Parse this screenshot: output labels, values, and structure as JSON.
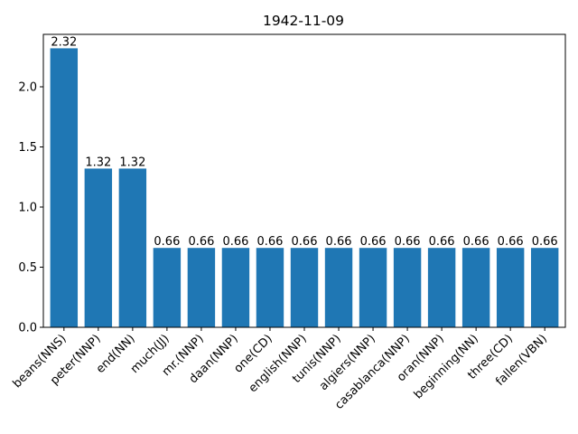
{
  "chart_data": {
    "type": "bar",
    "title": "1942-11-09",
    "xlabel": "",
    "ylabel": "",
    "ylim": [
      0,
      2.436
    ],
    "yticks": [
      0.0,
      0.5,
      1.0,
      1.5,
      2.0
    ],
    "ytick_labels": [
      "0.0",
      "0.5",
      "1.0",
      "1.5",
      "2.0"
    ],
    "bar_color": "#1f77b4",
    "categories": [
      "beans(NNS)",
      "peter(NNP)",
      "end(NN)",
      "much(JJ)",
      "mr.(NNP)",
      "daan(NNP)",
      "one(CD)",
      "english(NNP)",
      "tunis(NNP)",
      "algiers(NNP)",
      "casablanca(NNP)",
      "oran(NNP)",
      "beginning(NN)",
      "three(CD)",
      "fallen(VBN)"
    ],
    "values": [
      2.32,
      1.32,
      1.32,
      0.66,
      0.66,
      0.66,
      0.66,
      0.66,
      0.66,
      0.66,
      0.66,
      0.66,
      0.66,
      0.66,
      0.66
    ],
    "value_labels": [
      "2.32",
      "1.32",
      "1.32",
      "0.66",
      "0.66",
      "0.66",
      "0.66",
      "0.66",
      "0.66",
      "0.66",
      "0.66",
      "0.66",
      "0.66",
      "0.66",
      "0.66"
    ],
    "legend": "none",
    "grid": false
  }
}
